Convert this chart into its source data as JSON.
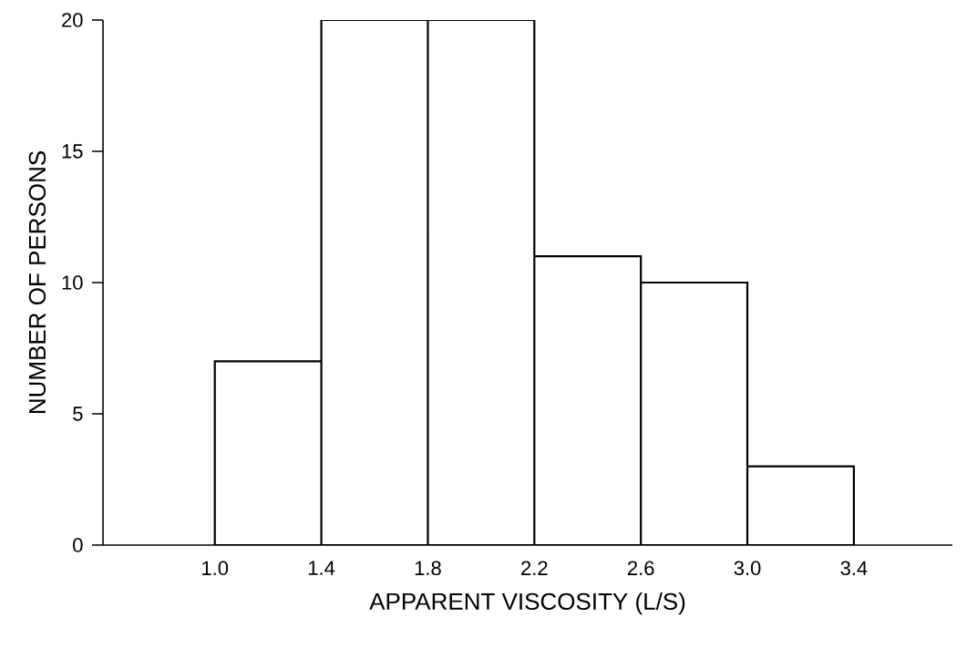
{
  "chart_data": {
    "type": "histogram",
    "xlabel": "APPARENT VISCOSITY (L/S)",
    "ylabel": "NUMBER OF PERSONS",
    "bins": [
      1.0,
      1.4,
      1.8,
      2.2,
      2.6,
      3.0,
      3.4
    ],
    "values": [
      7,
      20,
      20,
      11,
      10,
      3
    ],
    "color": "#ffffff",
    "xlim": [
      0.58,
      3.77
    ],
    "ylim": [
      0,
      20
    ],
    "xticks": [
      {
        "value": 1.0,
        "label": "1.0"
      },
      1.4,
      1.8,
      2.2,
      2.6,
      {
        "value": 3.0,
        "label": "3.0"
      },
      3.4
    ],
    "yticks": [
      0,
      5,
      10,
      15,
      20
    ]
  }
}
